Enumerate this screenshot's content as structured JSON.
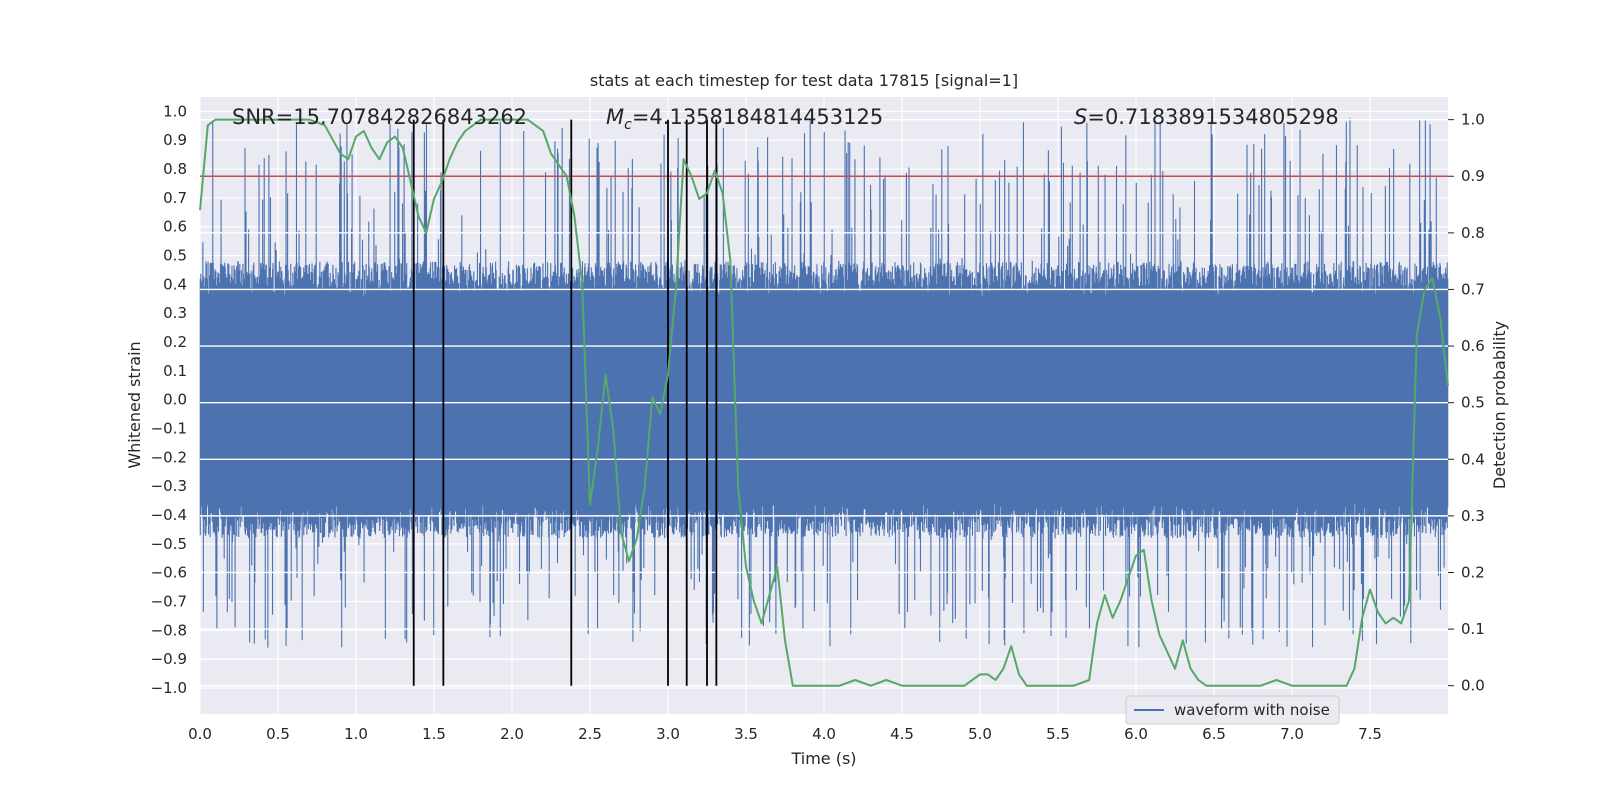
{
  "chart_data": {
    "type": "line",
    "title": "stats at each timestep for test data 17815 [signal=1]",
    "xlabel": "Time (s)",
    "ylabel_left": "Whitened strain",
    "ylabel_right": "Detection probability",
    "xlim": [
      0.0,
      8.0
    ],
    "ylim_left": [
      -1.09,
      1.05
    ],
    "ylim_right": [
      -0.05,
      1.04
    ],
    "x_ticks": [
      "0.0",
      "0.5",
      "1.0",
      "1.5",
      "2.0",
      "2.5",
      "3.0",
      "3.5",
      "4.0",
      "4.5",
      "5.0",
      "5.5",
      "6.0",
      "6.5",
      "7.0",
      "7.5"
    ],
    "y_ticks_left": [
      "1.0",
      "0.9",
      "0.8",
      "0.7",
      "0.6",
      "0.5",
      "0.4",
      "0.3",
      "0.2",
      "0.1",
      "0.0",
      "−0.1",
      "−0.2",
      "−0.3",
      "−0.4",
      "−0.5",
      "−0.6",
      "−0.7",
      "−0.8",
      "−0.9",
      "−1.0"
    ],
    "y_ticks_right": [
      "1.0",
      "0.9",
      "0.8",
      "0.7",
      "0.6",
      "0.5",
      "0.4",
      "0.3",
      "0.2",
      "0.1",
      "0.0"
    ],
    "annotations": {
      "snr": "SNR=15.707842826843262",
      "mc_symbol": "M",
      "mc_subscript": "c",
      "mc_value": "=4.1358184814453125",
      "s_symbol": "S",
      "s_value": "=0.7183891534805298"
    },
    "legend": {
      "label": "waveform with noise",
      "position": "lower-right"
    },
    "colors": {
      "waveform": "#4c72b0",
      "probability": "#55a868",
      "threshold": "#c44e52",
      "event_lines": "#000000",
      "background": "#eaeaf2",
      "grid": "#ffffff"
    },
    "grid": true,
    "threshold": {
      "axis": "right",
      "value": 0.9
    },
    "vertical_lines_x": [
      1.37,
      1.56,
      2.38,
      3.0,
      3.12,
      3.25,
      3.31
    ],
    "series": [
      {
        "name": "waveform with noise",
        "axis": "left",
        "kind": "noise-envelope",
        "x_range": [
          0.0,
          8.0
        ],
        "dense_band": [
          -0.38,
          0.38
        ],
        "spike_range": [
          -0.86,
          0.98
        ]
      },
      {
        "axis": "right",
        "x": [
          0.0,
          0.05,
          0.1,
          0.2,
          0.3,
          0.4,
          0.5,
          0.6,
          0.7,
          0.8,
          0.9,
          0.95,
          1.0,
          1.05,
          1.1,
          1.15,
          1.2,
          1.25,
          1.3,
          1.35,
          1.4,
          1.45,
          1.5,
          1.55,
          1.6,
          1.65,
          1.7,
          1.75,
          1.8,
          1.9,
          2.0,
          2.1,
          2.2,
          2.25,
          2.3,
          2.35,
          2.4,
          2.45,
          2.5,
          2.55,
          2.6,
          2.65,
          2.7,
          2.75,
          2.8,
          2.85,
          2.9,
          2.95,
          3.0,
          3.05,
          3.1,
          3.15,
          3.2,
          3.25,
          3.3,
          3.35,
          3.4,
          3.45,
          3.5,
          3.55,
          3.6,
          3.65,
          3.7,
          3.75,
          3.8,
          3.9,
          4.0,
          4.1,
          4.2,
          4.3,
          4.4,
          4.5,
          4.6,
          4.7,
          4.8,
          4.9,
          5.0,
          5.05,
          5.1,
          5.15,
          5.2,
          5.25,
          5.3,
          5.35,
          5.4,
          5.5,
          5.6,
          5.7,
          5.75,
          5.8,
          5.85,
          5.9,
          5.95,
          6.0,
          6.05,
          6.1,
          6.15,
          6.2,
          6.25,
          6.3,
          6.35,
          6.4,
          6.45,
          6.5,
          6.6,
          6.7,
          6.8,
          6.9,
          7.0,
          7.1,
          7.2,
          7.3,
          7.35,
          7.4,
          7.45,
          7.5,
          7.55,
          7.6,
          7.65,
          7.7,
          7.75,
          7.8,
          7.85,
          7.9,
          7.95,
          8.0
        ],
        "y": [
          0.84,
          0.99,
          1.0,
          1.0,
          1.0,
          1.0,
          1.0,
          1.0,
          1.0,
          0.99,
          0.94,
          0.93,
          0.97,
          0.98,
          0.95,
          0.93,
          0.96,
          0.97,
          0.95,
          0.89,
          0.83,
          0.8,
          0.86,
          0.89,
          0.93,
          0.96,
          0.98,
          0.99,
          1.0,
          1.0,
          1.0,
          1.0,
          0.98,
          0.94,
          0.92,
          0.9,
          0.83,
          0.71,
          0.32,
          0.42,
          0.55,
          0.45,
          0.27,
          0.22,
          0.26,
          0.35,
          0.51,
          0.48,
          0.55,
          0.7,
          0.93,
          0.9,
          0.86,
          0.87,
          0.91,
          0.87,
          0.75,
          0.35,
          0.21,
          0.15,
          0.11,
          0.16,
          0.21,
          0.08,
          0.0,
          0.0,
          0.0,
          0.0,
          0.01,
          0.0,
          0.01,
          0.0,
          0.0,
          0.0,
          0.0,
          0.0,
          0.02,
          0.02,
          0.01,
          0.03,
          0.07,
          0.02,
          0.0,
          0.0,
          0.0,
          0.0,
          0.0,
          0.01,
          0.11,
          0.16,
          0.12,
          0.15,
          0.19,
          0.23,
          0.24,
          0.15,
          0.09,
          0.06,
          0.03,
          0.08,
          0.03,
          0.01,
          0.0,
          0.0,
          0.0,
          0.0,
          0.0,
          0.01,
          0.0,
          0.0,
          0.0,
          0.0,
          0.0,
          0.03,
          0.12,
          0.17,
          0.13,
          0.11,
          0.12,
          0.11,
          0.15,
          0.62,
          0.7,
          0.72,
          0.65,
          0.53
        ]
      }
    ]
  }
}
